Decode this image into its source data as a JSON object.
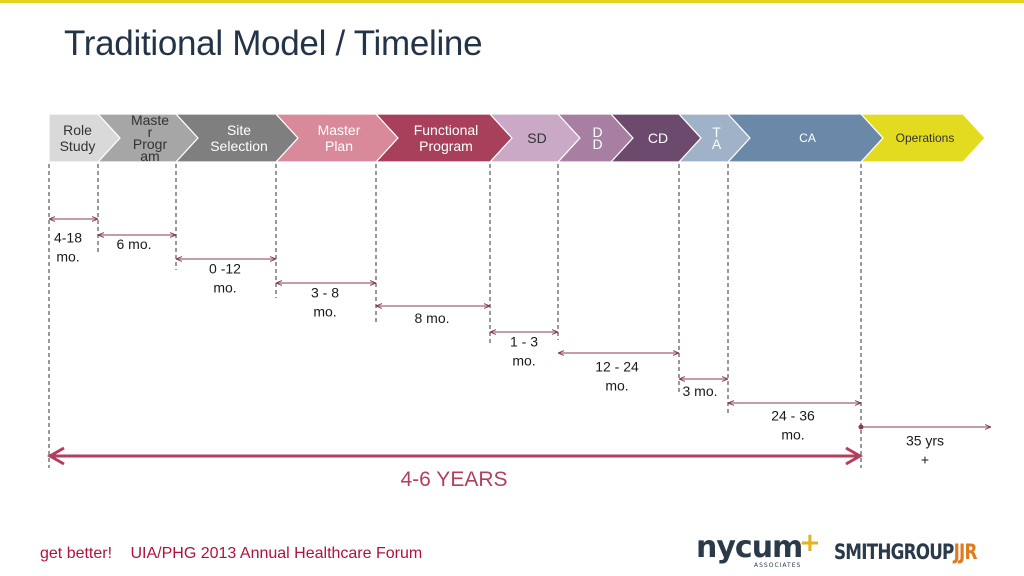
{
  "title": "Traditional Model / Timeline",
  "phases": [
    {
      "label": "Role\nStudy",
      "color": "#d9d9d9",
      "text_color": "#333333"
    },
    {
      "label": "Maste\nr\nProgr\nam",
      "color": "#a6a6a6",
      "text_color": "#333333"
    },
    {
      "label": "Site\nSelection",
      "color": "#7f7f7f",
      "text_color": "#ffffff"
    },
    {
      "label": "Master\nPlan",
      "color": "#d98a9a",
      "text_color": "#ffffff"
    },
    {
      "label": "Functional\nProgram",
      "color": "#a8405c",
      "text_color": "#ffffff"
    },
    {
      "label": "SD",
      "color": "#c9a9c6",
      "text_color": "#333333"
    },
    {
      "label": "D\nD",
      "color": "#a67fa3",
      "text_color": "#ffffff"
    },
    {
      "label": "CD",
      "color": "#6b4a6e",
      "text_color": "#ffffff"
    },
    {
      "label": "T\nA",
      "color": "#9fb2c8",
      "text_color": "#ffffff"
    },
    {
      "label": "CA",
      "color": "#6a88a8",
      "text_color": "#ffffff"
    },
    {
      "label": "Operations",
      "color": "#e3db1f",
      "text_color": "#333333"
    }
  ],
  "durations": [
    {
      "label": "4-18\nmo."
    },
    {
      "label": "6 mo."
    },
    {
      "label": "0 -12\nmo."
    },
    {
      "label": "3 - 8\nmo."
    },
    {
      "label": "8 mo."
    },
    {
      "label": "1 - 3\nmo."
    },
    {
      "label": "12 - 24\nmo."
    },
    {
      "label": "3 mo."
    },
    {
      "label": "24 - 36\nmo."
    },
    {
      "label": "35 yrs\n+"
    }
  ],
  "total_span": {
    "label": "4-6 YEARS",
    "color": "#b0405c"
  },
  "footer": {
    "tagline": "get better!",
    "event": "UIA/PHG 2013 Annual Healthcare Forum"
  },
  "logos": {
    "nycum": "nycum",
    "nycum_plus": "+",
    "nycum_sub": "ASSOCIATES",
    "smithgroup": "SMITHGROUP",
    "jjr": "JJR"
  },
  "colors": {
    "accent_bar": "#e3d51f",
    "title": "#243447",
    "arrow_line": "#8a3a55",
    "footer_text": "#b0123a"
  }
}
